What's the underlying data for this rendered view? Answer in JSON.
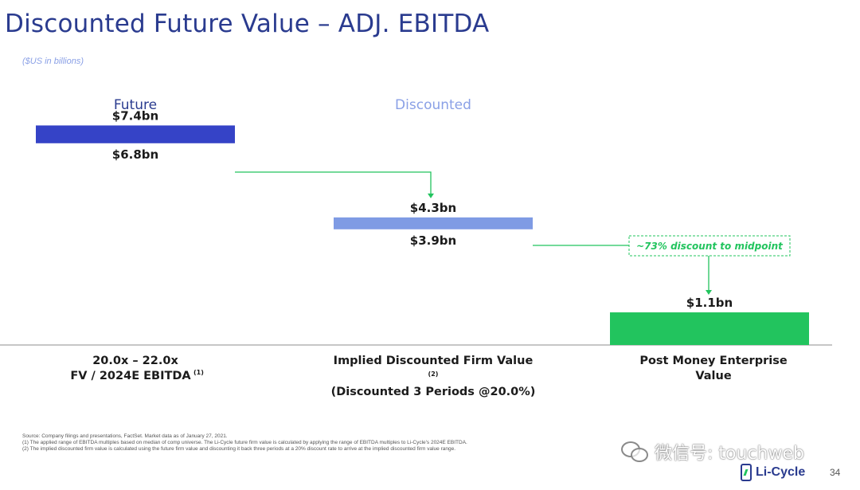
{
  "page": {
    "title": "Discounted Future Value – ADJ. EBITDA",
    "units": "($US in billions)",
    "page_number": "34"
  },
  "chart_data": {
    "type": "bar",
    "subtype": "floating-range",
    "column_headers": [
      "Future",
      "Discounted",
      ""
    ],
    "categories": [
      [
        "20.0x – 22.0x",
        "FV / 2024E EBITDA"
      ],
      [
        "Implied Discounted Firm Value",
        "(Discounted 3 Periods @20.0%)"
      ],
      [
        "Post Money Enterprise",
        "Value"
      ]
    ],
    "category_footnotes": [
      "(1)",
      "(2)",
      ""
    ],
    "bars": [
      {
        "low": 6.8,
        "high": 7.4,
        "low_label": "$6.8bn",
        "high_label": "$7.4bn",
        "color": "#3543c7"
      },
      {
        "low": 3.9,
        "high": 4.3,
        "low_label": "$3.9bn",
        "high_label": "$4.3bn",
        "color": "#7f9be4"
      },
      {
        "low": 0,
        "high": 1.1,
        "low_label": "",
        "high_label": "$1.1bn",
        "color": "#22c45e"
      }
    ],
    "annotation": "~73% discount to midpoint",
    "ylim": [
      0,
      7.6
    ],
    "header_colors": [
      "#2a3b8f",
      "#8aa0e6"
    ],
    "connector_color": "#22c45e"
  },
  "footnotes": [
    "Source: Company filings and presentations, FactSet. Market data as of January 27, 2021.",
    "(1)   The applied range of EBITDA multiples based on median of comp universe. The Li-Cycle future firm value is calculated by applying the range of EBITDA multiples to Li-Cycle's 2024E EBITDA.",
    "(2)   The implied discounted firm value is calculated using the future firm value and discounting it back three periods at a 20% discount rate to arrive at the implied discounted firm value range."
  ],
  "watermark": {
    "text": "微信号: touchweb",
    "icon": "wechat-icon"
  },
  "logo": {
    "text": "Li-Cycle",
    "icon": "battery-icon"
  }
}
